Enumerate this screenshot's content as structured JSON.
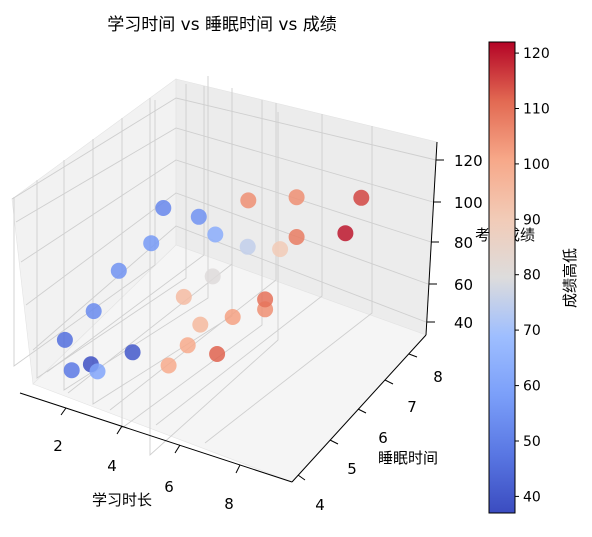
{
  "chart_data": {
    "type": "scatter",
    "projection": "3d",
    "title": "学习时间 vs 睡眠时间 vs 成绩",
    "xlabel": "学习时长",
    "ylabel": "睡眠时间",
    "zlabel": "考试成绩",
    "xticks": [
      "2",
      "4",
      "6",
      "8"
    ],
    "yticks": [
      "4",
      "5",
      "6",
      "7",
      "8"
    ],
    "zticks": [
      "40",
      "60",
      "80",
      "100",
      "120"
    ],
    "xlim": [
      1,
      9
    ],
    "ylim": [
      3.8,
      8.3
    ],
    "zlim": [
      35,
      128
    ],
    "grid": true,
    "colormap": "coolwarm",
    "colorbar": {
      "label": "成绩高低",
      "ticks": [
        "40",
        "50",
        "60",
        "70",
        "80",
        "90",
        "100",
        "110",
        "120"
      ],
      "range": [
        37,
        122
      ]
    },
    "points": [
      {
        "x": 1.2,
        "y": 4.6,
        "z": 46,
        "c": 46
      },
      {
        "x": 1.5,
        "y": 5.2,
        "z": 53,
        "c": 53
      },
      {
        "x": 2.2,
        "y": 4.4,
        "z": 43,
        "c": 38
      },
      {
        "x": 2.0,
        "y": 4.0,
        "z": 45,
        "c": 48
      },
      {
        "x": 2.6,
        "y": 4.2,
        "z": 45,
        "c": 60
      },
      {
        "x": 2.9,
        "y": 5.0,
        "z": 44,
        "c": 40
      },
      {
        "x": 1.0,
        "y": 6.5,
        "z": 50,
        "c": 55
      },
      {
        "x": 2.0,
        "y": 6.5,
        "z": 70,
        "c": 57
      },
      {
        "x": 1.1,
        "y": 7.8,
        "z": 62,
        "c": 52
      },
      {
        "x": 2.0,
        "y": 8.0,
        "z": 60,
        "c": 55
      },
      {
        "x": 3.0,
        "y": 7.5,
        "z": 65,
        "c": 63
      },
      {
        "x": 4.0,
        "y": 7.5,
        "z": 65,
        "c": 75
      },
      {
        "x": 3.9,
        "y": 6.5,
        "z": 65,
        "c": 80
      },
      {
        "x": 3.5,
        "y": 6.0,
        "z": 60,
        "c": 95
      },
      {
        "x": 5.0,
        "y": 7.5,
        "z": 70,
        "c": 90
      },
      {
        "x": 4.5,
        "y": 5.5,
        "z": 60,
        "c": 96
      },
      {
        "x": 4.6,
        "y": 5.0,
        "z": 58,
        "c": 100
      },
      {
        "x": 4.5,
        "y": 4.5,
        "z": 55,
        "c": 100
      },
      {
        "x": 5.5,
        "y": 5.5,
        "z": 70,
        "c": 102
      },
      {
        "x": 6.0,
        "y": 4.5,
        "z": 70,
        "c": 112
      },
      {
        "x": 6.5,
        "y": 5.5,
        "z": 80,
        "c": 105
      },
      {
        "x": 6.5,
        "y": 5.5,
        "z": 85,
        "c": 110
      },
      {
        "x": 6.0,
        "y": 7.0,
        "z": 90,
        "c": 108
      },
      {
        "x": 6.0,
        "y": 7.0,
        "z": 110,
        "c": 105
      },
      {
        "x": 5.0,
        "y": 6.5,
        "z": 110,
        "c": 105
      },
      {
        "x": 8.0,
        "y": 7.0,
        "z": 122,
        "c": 115
      },
      {
        "x": 8.0,
        "y": 6.5,
        "z": 112,
        "c": 120
      }
    ]
  }
}
